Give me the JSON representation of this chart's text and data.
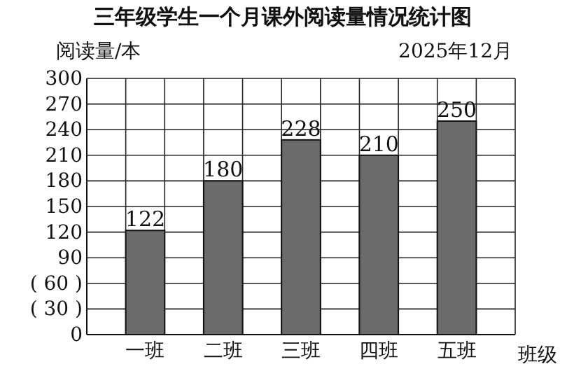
{
  "chart_data": {
    "type": "bar",
    "title": "三年级学生一个月课外阅读量情况统计图",
    "subtitle": "2025年12月",
    "ylabel": "阅读量/本",
    "xlabel": "班级",
    "categories": [
      "一班",
      "二班",
      "三班",
      "四班",
      "五班"
    ],
    "values": [
      122,
      180,
      228,
      210,
      250
    ],
    "color": "#6b6b6b",
    "data_labels": true,
    "ylim": [
      0,
      300
    ],
    "yticks": [
      0,
      {
        "value": 30,
        "label": "( 30 )"
      },
      {
        "value": 60,
        "label": "( 60 )"
      },
      90,
      120,
      150,
      180,
      210,
      240,
      270,
      300
    ],
    "grid": true
  }
}
